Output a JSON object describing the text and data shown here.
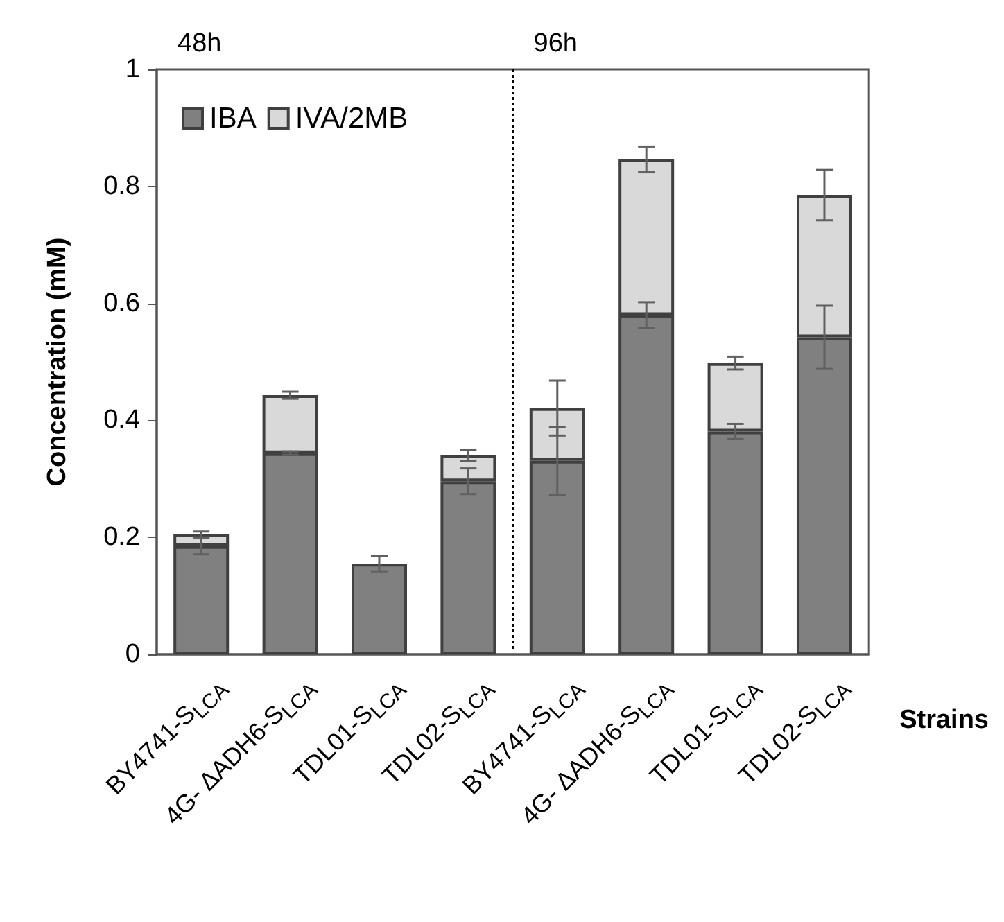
{
  "chart_data": {
    "type": "bar",
    "stacked": true,
    "ylabel": "Concentration (mM)",
    "xlabel": "Strains",
    "categories": [
      "BY4741-S$_{LCA}$",
      "4G- ΔADH6-S$_{LCA}$",
      "TDL01-S$_{LCA}$",
      "TDL02-S$_{LCA}$",
      "BY4741-S$_{LCA}$",
      "4G- ΔADH6-S$_{LCA}$",
      "TDL01-S$_{LCA}$",
      "TDL02-S$_{LCA}$"
    ],
    "series": [
      {
        "name": "IBA",
        "color": "#808080",
        "values": [
          0.185,
          0.344,
          0.155,
          0.296,
          0.331,
          0.58,
          0.381,
          0.542
        ],
        "errors": [
          0.014,
          0.003,
          0.013,
          0.022,
          0.058,
          0.022,
          0.013,
          0.054
        ]
      },
      {
        "name": "IVA/2MB",
        "color": "#d9d9d9",
        "values": [
          0.02,
          0.099,
          null,
          0.044,
          0.09,
          0.266,
          0.117,
          0.243
        ],
        "errors": [
          0.005,
          0.006,
          null,
          0.01,
          0.047,
          0.022,
          0.011,
          0.043
        ]
      }
    ],
    "ylim": [
      0,
      1
    ],
    "yticks": [
      0,
      0.2,
      0.4,
      0.6,
      0.8,
      1
    ],
    "grid": false,
    "legend": "top left",
    "annotations": [
      "48h",
      "96h"
    ]
  }
}
